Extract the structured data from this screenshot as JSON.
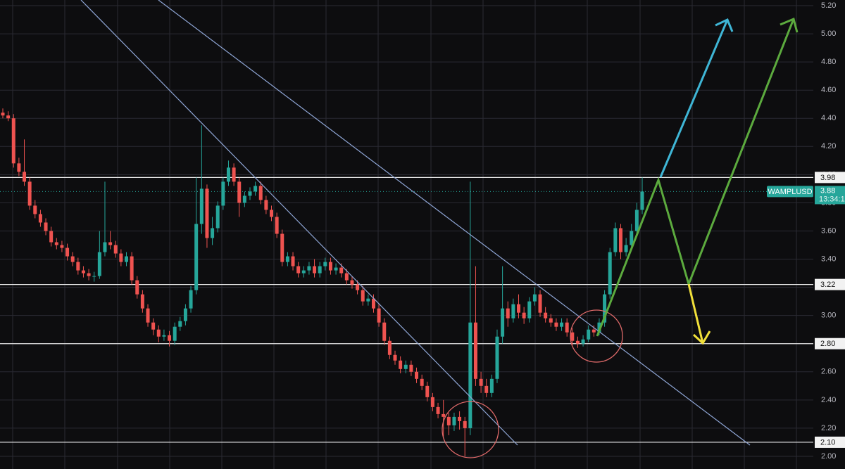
{
  "chart_data": {
    "type": "candlestick",
    "up_color": "#26a69a",
    "down_color": "#ef5350",
    "ylim": [
      1.91,
      5.24
    ],
    "yticks": [
      {
        "value": 2.0,
        "label": "2.00"
      },
      {
        "value": 2.2,
        "label": "2.20"
      },
      {
        "value": 2.4,
        "label": "2.40"
      },
      {
        "value": 2.6,
        "label": "2.60"
      },
      {
        "value": 2.8,
        "label": "2.80"
      },
      {
        "value": 3.0,
        "label": "3.00"
      },
      {
        "value": 3.2,
        "label": "3.20"
      },
      {
        "value": 3.4,
        "label": "3.40"
      },
      {
        "value": 3.6,
        "label": "3.60"
      },
      {
        "value": 3.8,
        "label": "3.80"
      },
      {
        "value": 4.0,
        "label": "4.00"
      },
      {
        "value": 4.2,
        "label": "4.20"
      },
      {
        "value": 4.4,
        "label": "4.40"
      },
      {
        "value": 4.6,
        "label": "4.60"
      },
      {
        "value": 4.8,
        "label": "4.80"
      },
      {
        "value": 5.0,
        "label": "5.00"
      },
      {
        "value": 5.2,
        "label": "5.20"
      }
    ],
    "grid": true,
    "levels": [
      3.98,
      3.22,
      {
        "value": 2.8,
        "label": "2.80"
      },
      {
        "value": 2.1,
        "label": "2.10"
      }
    ],
    "last_price": {
      "symbol": "WAMPLUSD",
      "value": 3.88,
      "time": "13:34:1"
    },
    "open": [
      4.44,
      4.42,
      4.4,
      4.08,
      4.02,
      3.95,
      3.78,
      3.72,
      3.66,
      3.6,
      3.52,
      3.5,
      3.48,
      3.42,
      3.38,
      3.32,
      3.3,
      3.28,
      3.28,
      3.45,
      3.52,
      3.5,
      3.44,
      3.38,
      3.42,
      3.25,
      3.15,
      3.05,
      2.95,
      2.9,
      2.85,
      2.86,
      2.82,
      2.92,
      2.96,
      3.05,
      3.18,
      3.65,
      3.9,
      3.55,
      3.62,
      3.78,
      3.95,
      4.05,
      3.95,
      3.8,
      3.85,
      3.88,
      3.92,
      3.82,
      3.75,
      3.7,
      3.58,
      3.38,
      3.42,
      3.35,
      3.3,
      3.32,
      3.35,
      3.3,
      3.35,
      3.38,
      3.32,
      3.34,
      3.3,
      3.25,
      3.22,
      3.18,
      3.1,
      3.12,
      3.05,
      2.95,
      2.82,
      2.72,
      2.68,
      2.62,
      2.65,
      2.6,
      2.55,
      2.5,
      2.42,
      2.35,
      2.3,
      2.28,
      2.22,
      2.28,
      2.25,
      2.2,
      2.95,
      2.55,
      2.5,
      2.45,
      2.55,
      2.85,
      3.05,
      2.98,
      3.08,
      3.02,
      2.98,
      3.1,
      3.15,
      3.02,
      2.98,
      2.95,
      2.92,
      2.95,
      2.88,
      2.82,
      2.8,
      2.83,
      2.9,
      2.88,
      2.95,
      3.15,
      3.45,
      3.62,
      3.45,
      3.5,
      3.6,
      3.75
    ],
    "high": [
      4.47,
      4.45,
      4.43,
      4.12,
      4.25,
      3.98,
      3.82,
      3.75,
      3.69,
      3.63,
      3.55,
      3.53,
      3.51,
      3.45,
      3.41,
      3.35,
      3.33,
      3.31,
      3.6,
      3.95,
      3.6,
      3.53,
      3.47,
      3.45,
      3.45,
      3.28,
      3.18,
      3.08,
      2.98,
      2.93,
      2.9,
      2.89,
      2.95,
      2.99,
      3.08,
      3.21,
      3.98,
      4.35,
      3.93,
      3.7,
      3.81,
      3.98,
      4.1,
      4.08,
      3.98,
      3.88,
      3.91,
      3.95,
      3.95,
      3.85,
      3.78,
      3.73,
      3.61,
      3.45,
      3.45,
      3.38,
      3.35,
      3.38,
      3.4,
      3.38,
      3.41,
      3.41,
      3.37,
      3.37,
      3.33,
      3.28,
      3.25,
      3.21,
      3.15,
      3.15,
      3.08,
      2.98,
      2.85,
      2.75,
      2.71,
      2.68,
      2.68,
      2.63,
      2.58,
      2.53,
      2.45,
      2.38,
      2.4,
      2.31,
      2.31,
      2.32,
      2.28,
      3.95,
      3.35,
      2.6,
      2.55,
      2.58,
      2.9,
      3.35,
      3.1,
      3.12,
      3.15,
      3.06,
      3.13,
      3.2,
      3.18,
      3.06,
      3.01,
      2.98,
      2.98,
      2.98,
      2.91,
      2.85,
      2.86,
      2.93,
      2.93,
      2.98,
      3.18,
      3.48,
      3.66,
      3.65,
      3.55,
      3.65,
      3.8,
      3.98
    ],
    "low": [
      4.4,
      4.38,
      4.05,
      3.99,
      3.92,
      3.75,
      3.69,
      3.63,
      3.57,
      3.49,
      3.47,
      3.45,
      3.39,
      3.35,
      3.29,
      3.27,
      3.25,
      3.24,
      3.26,
      3.42,
      3.47,
      3.41,
      3.35,
      3.35,
      3.22,
      3.12,
      3.02,
      2.92,
      2.86,
      2.81,
      2.82,
      2.78,
      2.79,
      2.89,
      2.93,
      3.02,
      3.15,
      3.58,
      3.48,
      3.5,
      3.59,
      3.75,
      3.92,
      3.92,
      3.7,
      3.77,
      3.82,
      3.85,
      3.79,
      3.72,
      3.67,
      3.55,
      3.35,
      3.35,
      3.32,
      3.27,
      3.27,
      3.29,
      3.27,
      3.27,
      3.32,
      3.29,
      3.29,
      3.27,
      3.22,
      3.19,
      3.15,
      3.07,
      3.07,
      3.02,
      2.92,
      2.79,
      2.69,
      2.65,
      2.59,
      2.59,
      2.57,
      2.52,
      2.47,
      2.39,
      2.32,
      2.27,
      2.14,
      2.15,
      2.18,
      2.19,
      2.0,
      2.15,
      2.5,
      2.45,
      2.42,
      2.42,
      2.52,
      2.8,
      2.92,
      2.95,
      2.98,
      2.94,
      2.95,
      3.07,
      2.99,
      2.95,
      2.92,
      2.89,
      2.89,
      2.85,
      2.79,
      2.77,
      2.78,
      2.81,
      2.85,
      2.86,
      2.92,
      3.12,
      3.42,
      3.4,
      3.42,
      3.47,
      3.57,
      3.72
    ],
    "close": [
      4.42,
      4.4,
      4.08,
      4.02,
      3.95,
      3.78,
      3.72,
      3.66,
      3.6,
      3.52,
      3.5,
      3.48,
      3.42,
      3.38,
      3.32,
      3.3,
      3.28,
      3.28,
      3.45,
      3.52,
      3.5,
      3.44,
      3.38,
      3.42,
      3.25,
      3.15,
      3.05,
      2.95,
      2.9,
      2.85,
      2.86,
      2.82,
      2.92,
      2.96,
      3.05,
      3.18,
      3.65,
      3.9,
      3.55,
      3.62,
      3.78,
      3.95,
      4.05,
      3.95,
      3.8,
      3.85,
      3.88,
      3.92,
      3.82,
      3.75,
      3.7,
      3.58,
      3.38,
      3.42,
      3.35,
      3.3,
      3.32,
      3.35,
      3.3,
      3.35,
      3.38,
      3.32,
      3.34,
      3.3,
      3.25,
      3.22,
      3.18,
      3.1,
      3.12,
      3.05,
      2.95,
      2.82,
      2.72,
      2.68,
      2.62,
      2.65,
      2.6,
      2.55,
      2.5,
      2.42,
      2.35,
      2.3,
      2.28,
      2.22,
      2.28,
      2.25,
      2.2,
      2.95,
      2.55,
      2.5,
      2.45,
      2.55,
      2.85,
      3.05,
      2.98,
      3.08,
      3.02,
      2.98,
      3.1,
      3.15,
      3.02,
      2.98,
      2.95,
      2.92,
      2.95,
      2.88,
      2.82,
      2.8,
      2.83,
      2.9,
      2.88,
      2.95,
      3.15,
      3.45,
      3.62,
      3.45,
      3.5,
      3.6,
      3.75,
      3.88
    ]
  }
}
